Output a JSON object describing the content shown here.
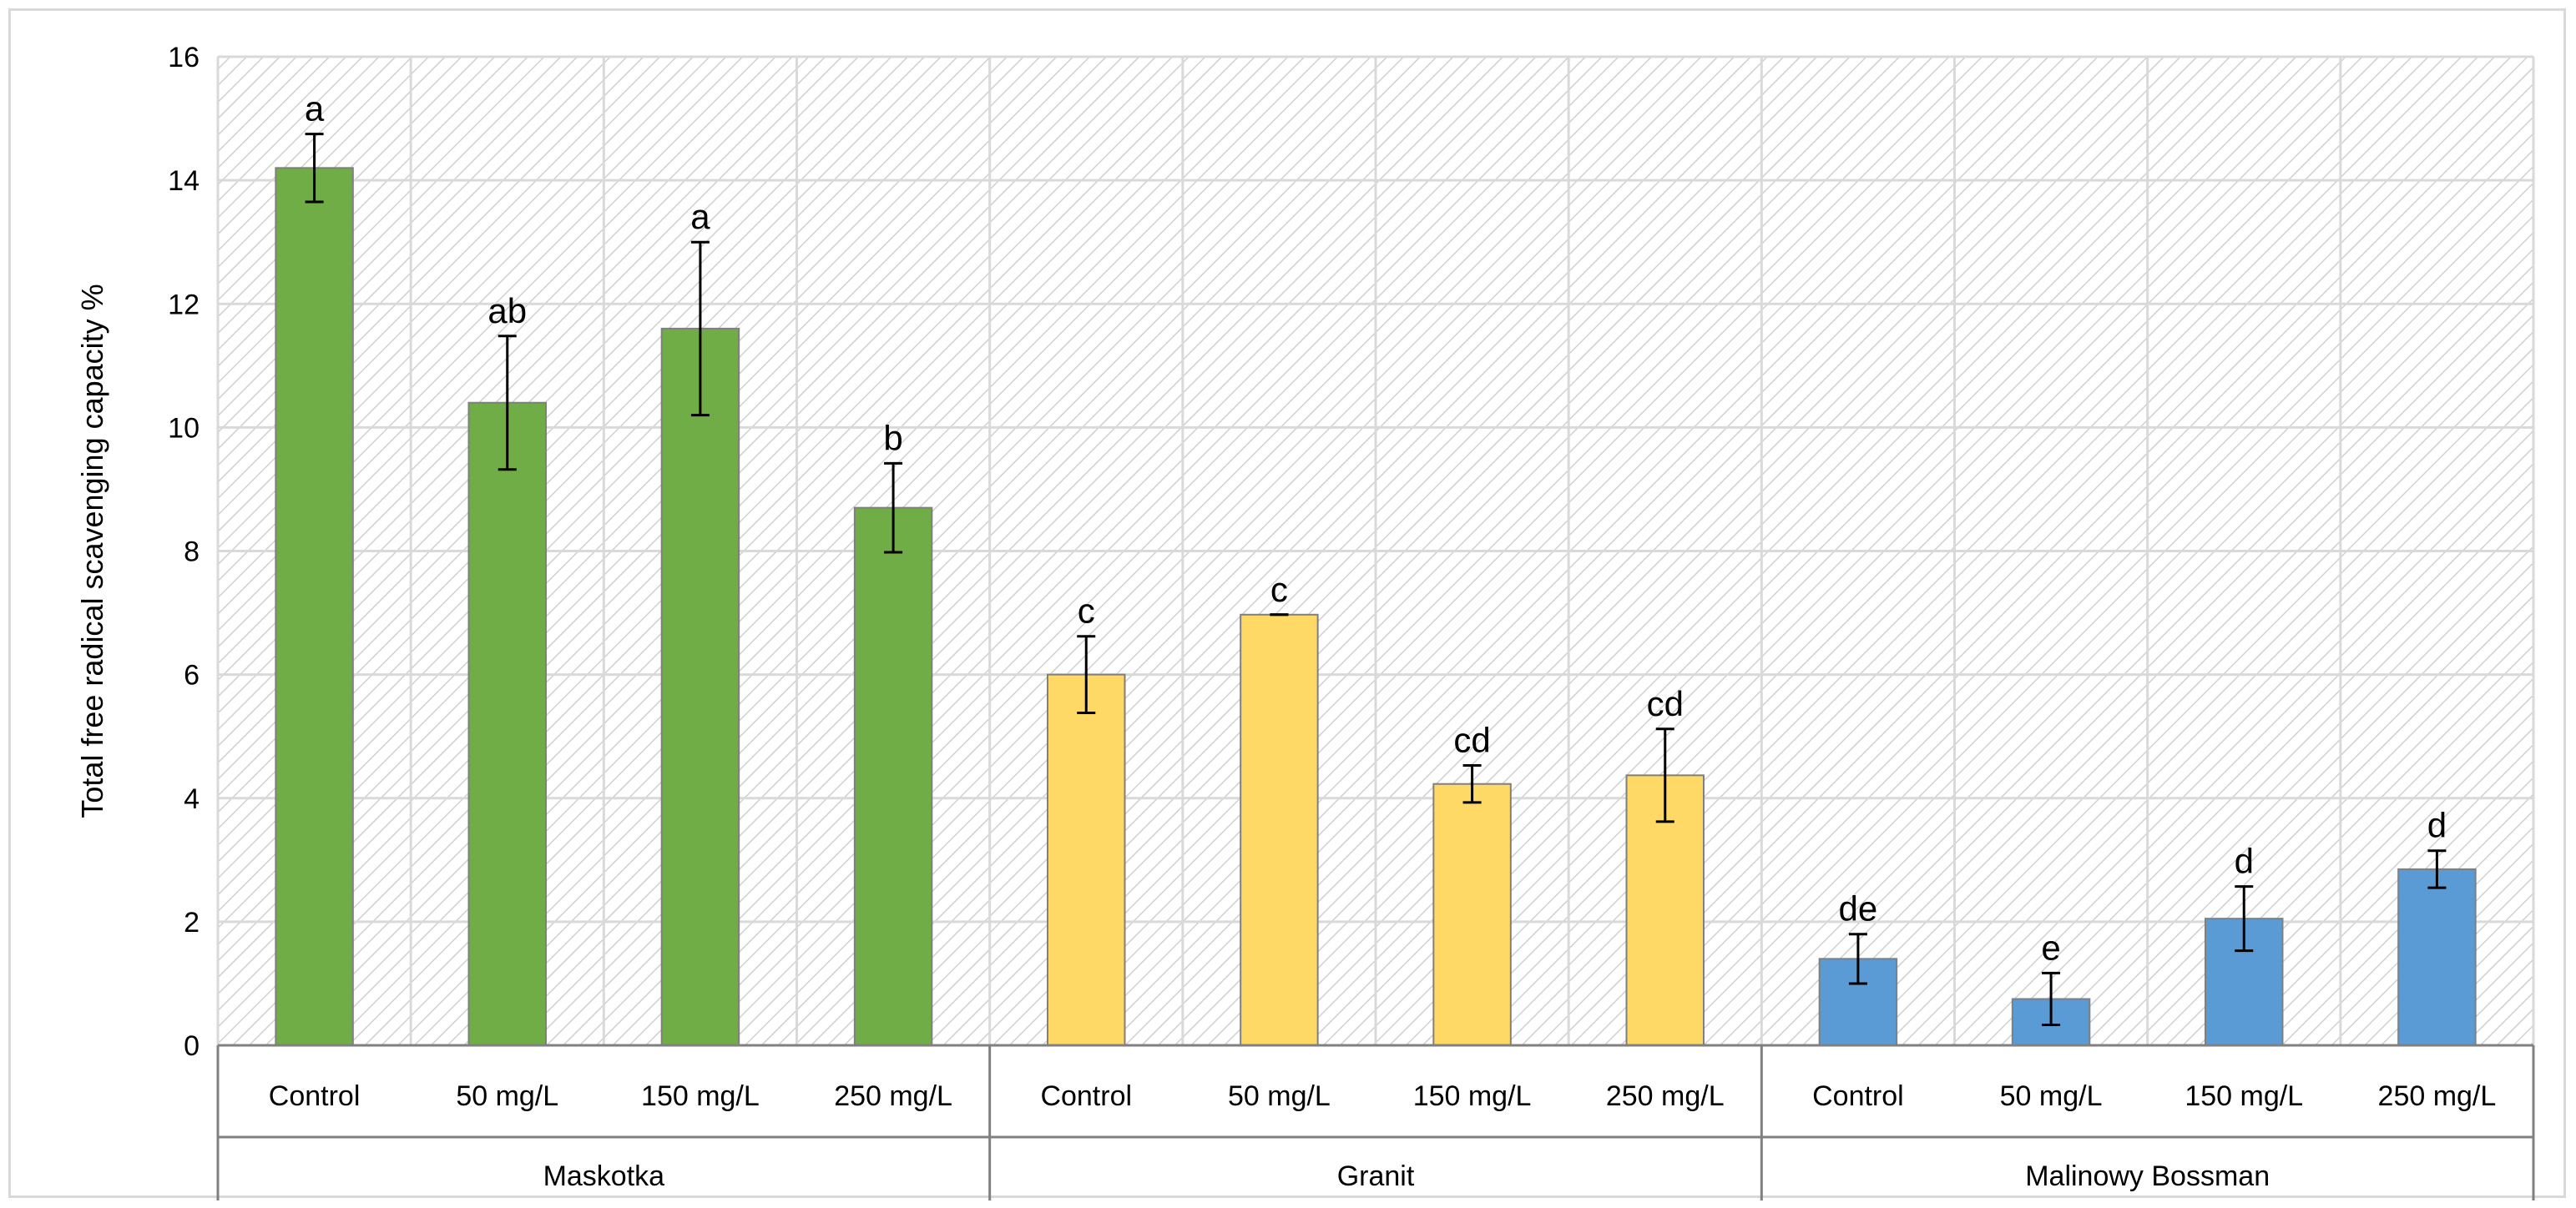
{
  "chart_data": {
    "type": "bar",
    "ylabel": "Total free radical scavenging capacity %",
    "xlabel": "",
    "ylim": [
      0,
      16
    ],
    "yticks": [
      "0",
      "2",
      "4",
      "6",
      "8",
      "10",
      "12",
      "14",
      "16"
    ],
    "grid": true,
    "groups": [
      {
        "name": "Maskotka",
        "color": "#70ad47",
        "categories": [
          "Control",
          "50 mg/L",
          "150 mg/L",
          "250 mg/L"
        ],
        "values": [
          14.2,
          10.4,
          11.6,
          8.7
        ],
        "errors": [
          0.55,
          1.08,
          1.4,
          0.72
        ],
        "letters": [
          "a",
          "ab",
          "a",
          "b"
        ]
      },
      {
        "name": "Granit",
        "color": "#ffd966",
        "categories": [
          "Control",
          "50 mg/L",
          "150 mg/L",
          "250 mg/L"
        ],
        "values": [
          6.0,
          6.97,
          4.23,
          4.37
        ],
        "errors": [
          0.62,
          0.0,
          0.3,
          0.75
        ],
        "letters": [
          "c",
          "c",
          "cd",
          "cd"
        ]
      },
      {
        "name": "Malinowy Bossman",
        "color": "#5b9bd5",
        "categories": [
          "Control",
          "50 mg/L",
          "150 mg/L",
          "250 mg/L"
        ],
        "values": [
          1.4,
          0.75,
          2.05,
          2.85
        ],
        "errors": [
          0.4,
          0.42,
          0.52,
          0.3
        ],
        "letters": [
          "de",
          "e",
          "d",
          "d"
        ]
      }
    ]
  }
}
